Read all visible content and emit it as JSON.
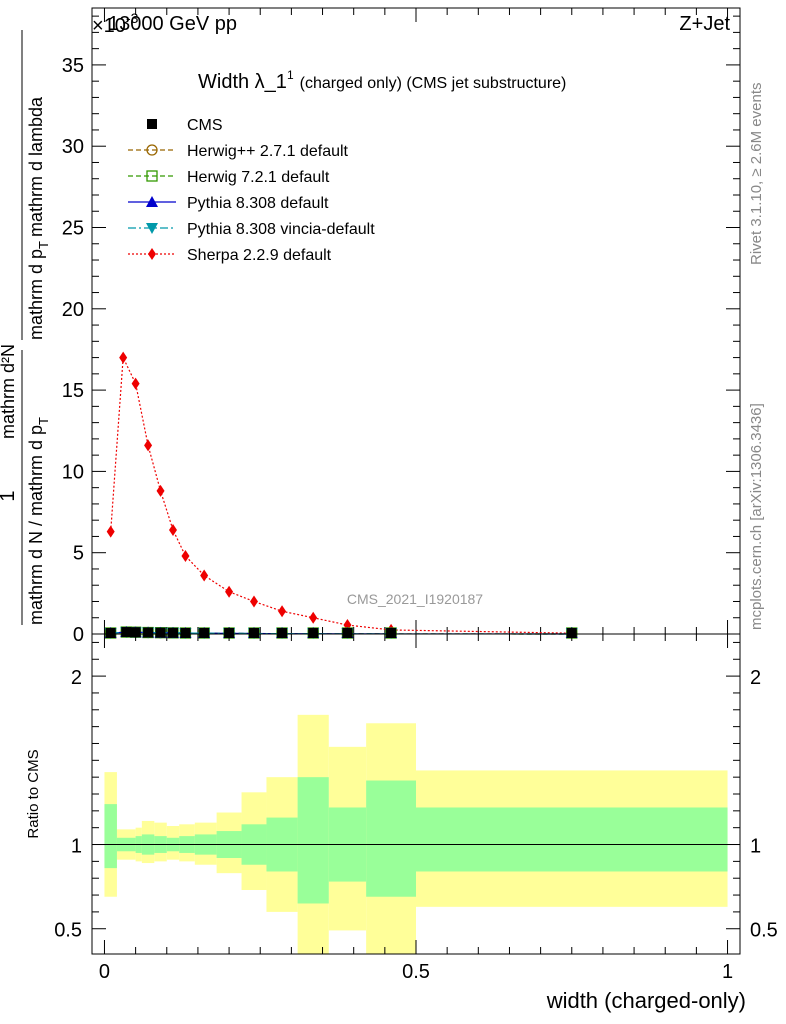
{
  "header": {
    "left": "13000 GeV pp",
    "right": "Z+Jet",
    "exponent": "×10",
    "exponent_power": "-3",
    "right_side_1": "Rivet 3.1.10, ≥ 2.6M events",
    "right_side_2": "mcplots.cern.ch [arXiv:1306.3436]",
    "watermark": "CMS_2021_I1920187"
  },
  "chart_data": [
    {
      "type": "line",
      "title": "Width λ_1",
      "title_sup": "1",
      "title_suffix": "(charged only) (CMS jet substructure)",
      "ylabel_num": "1",
      "ylabel_den_top": "mathrm d N / mathrm d p",
      "ylabel_den_sub": "T",
      "ylabel_main": "mathrm d²N",
      "ylabel_main_2": "mathrm d p",
      "ylabel_main_3": "mathrm d lambda",
      "xlim": [
        -0.02,
        1.02
      ],
      "ylim": [
        0,
        38.5
      ],
      "yticks": [
        0,
        5,
        10,
        15,
        20,
        25,
        30,
        35
      ],
      "legend_position": "top-left",
      "series": [
        {
          "name": "CMS",
          "color": "#000000",
          "style": "square-filled",
          "x": [
            0.01,
            0.035,
            0.05,
            0.07,
            0.09,
            0.11,
            0.13,
            0.16,
            0.2,
            0.24,
            0.285,
            0.335,
            0.39,
            0.46,
            0.75
          ],
          "y": [
            0.05,
            0.12,
            0.11,
            0.09,
            0.08,
            0.07,
            0.06,
            0.05,
            0.04,
            0.03,
            0.02,
            0.015,
            0.01,
            0.005,
            0.001
          ]
        },
        {
          "name": "Herwig++ 2.7.1 default",
          "color": "#996600",
          "style": "circle-open-dashed",
          "x": [
            0.01,
            0.035,
            0.05,
            0.07,
            0.09,
            0.11,
            0.13,
            0.16,
            0.2,
            0.24,
            0.285,
            0.335,
            0.39,
            0.46,
            0.75
          ],
          "y": [
            0.05,
            0.12,
            0.11,
            0.09,
            0.08,
            0.07,
            0.06,
            0.05,
            0.04,
            0.03,
            0.02,
            0.015,
            0.01,
            0.005,
            0.001
          ]
        },
        {
          "name": "Herwig 7.2.1 default",
          "color": "#339900",
          "style": "square-open-dashed",
          "x": [
            0.01,
            0.035,
            0.05,
            0.07,
            0.09,
            0.11,
            0.13,
            0.16,
            0.2,
            0.24,
            0.285,
            0.335,
            0.39,
            0.46,
            0.75
          ],
          "y": [
            0.05,
            0.12,
            0.11,
            0.09,
            0.08,
            0.07,
            0.06,
            0.05,
            0.04,
            0.03,
            0.02,
            0.015,
            0.01,
            0.005,
            0.001
          ]
        },
        {
          "name": "Pythia 8.308 default",
          "color": "#0000cc",
          "style": "triangle-solid",
          "x": [
            0.01,
            0.035,
            0.05,
            0.07,
            0.09,
            0.11,
            0.13,
            0.16,
            0.2,
            0.24,
            0.285,
            0.335,
            0.39,
            0.46,
            0.75
          ],
          "y": [
            0.05,
            0.12,
            0.11,
            0.09,
            0.08,
            0.07,
            0.06,
            0.05,
            0.04,
            0.03,
            0.02,
            0.015,
            0.01,
            0.005,
            0.001
          ]
        },
        {
          "name": "Pythia 8.308 vincia-default",
          "color": "#0099aa",
          "style": "triangle-down-dashdot",
          "x": [
            0.01,
            0.035,
            0.05,
            0.07,
            0.09,
            0.11,
            0.13,
            0.16,
            0.2,
            0.24,
            0.285,
            0.335,
            0.39,
            0.46,
            0.75
          ],
          "y": [
            0.05,
            0.12,
            0.11,
            0.09,
            0.08,
            0.07,
            0.06,
            0.05,
            0.04,
            0.03,
            0.02,
            0.015,
            0.01,
            0.005,
            0.001
          ]
        },
        {
          "name": "Sherpa 2.2.9 default",
          "color": "#ee0000",
          "style": "diamond-dotted",
          "x": [
            0.01,
            0.03,
            0.05,
            0.07,
            0.09,
            0.11,
            0.13,
            0.16,
            0.2,
            0.24,
            0.285,
            0.335,
            0.39,
            0.46,
            0.75
          ],
          "y": [
            6.3,
            17.0,
            15.4,
            11.6,
            8.8,
            6.4,
            4.8,
            3.6,
            2.6,
            2.0,
            1.4,
            1.0,
            0.55,
            0.25,
            0.05
          ]
        }
      ]
    },
    {
      "type": "area",
      "ylabel": "Ratio to CMS",
      "xlabel": "width (charged-only)",
      "xlim": [
        -0.02,
        1.02
      ],
      "xticks": [
        0,
        0.5,
        1
      ],
      "xtick_labels": [
        "0",
        "0.5",
        "1"
      ],
      "ylim": [
        0.35,
        2.25
      ],
      "yticks": [
        0.5,
        1,
        2
      ],
      "ytick_labels": [
        "0.5",
        "1",
        "2"
      ],
      "reference_line": 1,
      "bins": [
        {
          "x0": 0.0,
          "x1": 0.02,
          "in_lo": 0.86,
          "in_hi": 1.24,
          "out_lo": 0.69,
          "out_hi": 1.43
        },
        {
          "x0": 0.02,
          "x1": 0.05,
          "in_lo": 0.96,
          "in_hi": 1.04,
          "out_lo": 0.91,
          "out_hi": 1.09
        },
        {
          "x0": 0.05,
          "x1": 0.06,
          "in_lo": 0.95,
          "in_hi": 1.05,
          "out_lo": 0.9,
          "out_hi": 1.1
        },
        {
          "x0": 0.06,
          "x1": 0.08,
          "in_lo": 0.94,
          "in_hi": 1.06,
          "out_lo": 0.89,
          "out_hi": 1.14
        },
        {
          "x0": 0.08,
          "x1": 0.1,
          "in_lo": 0.95,
          "in_hi": 1.05,
          "out_lo": 0.9,
          "out_hi": 1.13
        },
        {
          "x0": 0.1,
          "x1": 0.12,
          "in_lo": 0.96,
          "in_hi": 1.04,
          "out_lo": 0.91,
          "out_hi": 1.11
        },
        {
          "x0": 0.12,
          "x1": 0.145,
          "in_lo": 0.95,
          "in_hi": 1.05,
          "out_lo": 0.9,
          "out_hi": 1.12
        },
        {
          "x0": 0.145,
          "x1": 0.18,
          "in_lo": 0.94,
          "in_hi": 1.06,
          "out_lo": 0.88,
          "out_hi": 1.13
        },
        {
          "x0": 0.18,
          "x1": 0.22,
          "in_lo": 0.92,
          "in_hi": 1.08,
          "out_lo": 0.83,
          "out_hi": 1.19
        },
        {
          "x0": 0.22,
          "x1": 0.26,
          "in_lo": 0.88,
          "in_hi": 1.12,
          "out_lo": 0.73,
          "out_hi": 1.31
        },
        {
          "x0": 0.26,
          "x1": 0.31,
          "in_lo": 0.84,
          "in_hi": 1.16,
          "out_lo": 0.6,
          "out_hi": 1.4
        },
        {
          "x0": 0.31,
          "x1": 0.36,
          "in_lo": 0.65,
          "in_hi": 1.4,
          "out_lo": 0.35,
          "out_hi": 1.77
        },
        {
          "x0": 0.36,
          "x1": 0.42,
          "in_lo": 0.78,
          "in_hi": 1.22,
          "out_lo": 0.49,
          "out_hi": 1.58
        },
        {
          "x0": 0.42,
          "x1": 0.5,
          "in_lo": 0.69,
          "in_hi": 1.38,
          "out_lo": 0.35,
          "out_hi": 1.72
        },
        {
          "x0": 0.5,
          "x1": 1.0,
          "in_lo": 0.84,
          "in_hi": 1.22,
          "out_lo": 0.63,
          "out_hi": 1.44
        }
      ]
    }
  ]
}
